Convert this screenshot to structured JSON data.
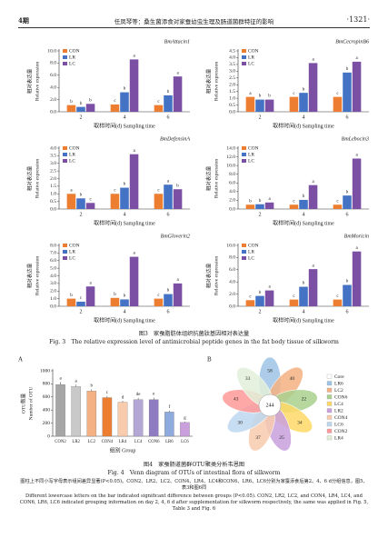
{
  "header": {
    "issue": "4期",
    "running_title": "任凤琴等：桑生菌添食对家蚕幼虫生理及肠道菌群特征的影响",
    "page": "·1321·"
  },
  "chart_data": [
    {
      "type": "bar",
      "title": "BmAttacin1",
      "ylabel_cn": "相对表达量",
      "ylabel": "Relative expression",
      "xlabel": "取样时间(d) Sampling time",
      "categories": [
        "2",
        "4",
        "6"
      ],
      "ylim": [
        0,
        10
      ],
      "yticks": [
        {
          "value": 0,
          "label": "0.0"
        },
        {
          "value": 2,
          "label": "2.0"
        },
        {
          "value": 4,
          "label": "4.0"
        },
        {
          "value": 6,
          "label": "6.0"
        },
        {
          "value": 8,
          "label": "8.0"
        },
        {
          "value": 10,
          "label": "10.0"
        }
      ],
      "series": [
        {
          "name": "CON",
          "color": "#ed7d31",
          "values": [
            1.1,
            1.2,
            1.1
          ],
          "letters": [
            "b",
            "c",
            "c"
          ]
        },
        {
          "name": "LR",
          "color": "#4472c4",
          "values": [
            0.8,
            3.2,
            2.7
          ],
          "letters": [
            "b",
            "b",
            "b"
          ]
        },
        {
          "name": "LC",
          "color": "#7b4fa3",
          "values": [
            1.3,
            8.6,
            5.8
          ],
          "letters": [
            "b",
            "a",
            "a"
          ]
        }
      ]
    },
    {
      "type": "bar",
      "title": "BmCecropinB6",
      "ylabel_cn": "相对表达量",
      "ylabel": "Relative expression",
      "xlabel": "取样时间(d) Sampling time",
      "categories": [
        "2",
        "4",
        "6"
      ],
      "ylim": [
        0,
        4.5
      ],
      "yticks": [
        {
          "value": 0,
          "label": "0.0"
        },
        {
          "value": 0.5,
          "label": "0.5"
        },
        {
          "value": 1,
          "label": "1.0"
        },
        {
          "value": 1.5,
          "label": "1.5"
        },
        {
          "value": 2,
          "label": "2.0"
        },
        {
          "value": 2.5,
          "label": "2.5"
        },
        {
          "value": 3,
          "label": "3.0"
        },
        {
          "value": 3.5,
          "label": "3.5"
        },
        {
          "value": 4,
          "label": "4.0"
        },
        {
          "value": 4.5,
          "label": "4.5"
        }
      ],
      "series": [
        {
          "name": "CON",
          "color": "#ed7d31",
          "values": [
            1.1,
            1.1,
            1.1
          ],
          "letters": [
            "a",
            "c",
            "c"
          ]
        },
        {
          "name": "LR",
          "color": "#4472c4",
          "values": [
            0.9,
            1.4,
            2.9
          ],
          "letters": [
            "b",
            "b",
            "b"
          ]
        },
        {
          "name": "LC",
          "color": "#7b4fa3",
          "values": [
            0.9,
            3.6,
            3.7
          ],
          "letters": [
            "b",
            "a",
            "a"
          ]
        }
      ]
    },
    {
      "type": "bar",
      "title": "BmDefensinA",
      "ylabel_cn": "相对表达量",
      "ylabel": "Relative expression",
      "xlabel": "取样时间(d) Sampling time",
      "categories": [
        "2",
        "4",
        "6"
      ],
      "ylim": [
        0,
        4
      ],
      "yticks": [
        {
          "value": 0,
          "label": "0.0"
        },
        {
          "value": 0.5,
          "label": "0.5"
        },
        {
          "value": 1,
          "label": "1.0"
        },
        {
          "value": 1.5,
          "label": "1.5"
        },
        {
          "value": 2,
          "label": "2.0"
        },
        {
          "value": 2.5,
          "label": "2.5"
        },
        {
          "value": 3,
          "label": "3.0"
        },
        {
          "value": 3.5,
          "label": "3.5"
        },
        {
          "value": 4,
          "label": "4.0"
        }
      ],
      "series": [
        {
          "name": "CON",
          "color": "#ed7d31",
          "values": [
            1.0,
            1.0,
            1.0
          ],
          "letters": [
            "a",
            "c",
            "c"
          ]
        },
        {
          "name": "LR",
          "color": "#4472c4",
          "values": [
            0.7,
            1.4,
            1.6
          ],
          "letters": [
            "b",
            "b",
            "a"
          ]
        },
        {
          "name": "LC",
          "color": "#7b4fa3",
          "values": [
            0.4,
            3.6,
            1.3
          ],
          "letters": [
            "c",
            "a",
            "b"
          ]
        }
      ]
    },
    {
      "type": "bar",
      "title": "BmLebocin3",
      "ylabel_cn": "相对表达量",
      "ylabel": "Relative expression",
      "xlabel": "取样时间(d) Sampling time",
      "categories": [
        "2",
        "4",
        "6"
      ],
      "ylim": [
        0,
        14
      ],
      "yticks": [
        {
          "value": 0,
          "label": "0.0"
        },
        {
          "value": 2,
          "label": "2.0"
        },
        {
          "value": 4,
          "label": "4.0"
        },
        {
          "value": 6,
          "label": "6.0"
        },
        {
          "value": 8,
          "label": "8.0"
        },
        {
          "value": 10,
          "label": "10.0"
        },
        {
          "value": 12,
          "label": "12.0"
        },
        {
          "value": 14,
          "label": "14.0"
        }
      ],
      "series": [
        {
          "name": "CON",
          "color": "#ed7d31",
          "values": [
            1.0,
            1.0,
            1.0
          ],
          "letters": [
            "b",
            "c",
            "c"
          ]
        },
        {
          "name": "LR",
          "color": "#4472c4",
          "values": [
            1.1,
            2.1,
            3.1
          ],
          "letters": [
            "b",
            "b",
            "b"
          ]
        },
        {
          "name": "LC",
          "color": "#7b4fa3",
          "values": [
            1.5,
            5.5,
            11.6
          ],
          "letters": [
            "a",
            "a",
            "a"
          ]
        }
      ]
    },
    {
      "type": "bar",
      "title": "BmGloverin2",
      "ylabel_cn": "相对表达量",
      "ylabel": "Relative expression",
      "xlabel": "取样时间(d) Sampling time",
      "categories": [
        "2",
        "4",
        "6"
      ],
      "ylim": [
        0,
        8
      ],
      "yticks": [
        {
          "value": 0,
          "label": "0.0"
        },
        {
          "value": 1,
          "label": "1.0"
        },
        {
          "value": 2,
          "label": "2.0"
        },
        {
          "value": 3,
          "label": "3.0"
        },
        {
          "value": 4,
          "label": "4.0"
        },
        {
          "value": 5,
          "label": "5.0"
        },
        {
          "value": 6,
          "label": "6.0"
        },
        {
          "value": 7,
          "label": "7.0"
        },
        {
          "value": 8,
          "label": "8.0"
        }
      ],
      "series": [
        {
          "name": "CON",
          "color": "#ed7d31",
          "values": [
            1.0,
            1.1,
            1.0
          ],
          "letters": [
            "b",
            "b",
            "c"
          ]
        },
        {
          "name": "LR",
          "color": "#4472c4",
          "values": [
            0.6,
            0.9,
            1.6
          ],
          "letters": [
            "c",
            "b",
            "b"
          ]
        },
        {
          "name": "LC",
          "color": "#7b4fa3",
          "values": [
            2.6,
            6.5,
            3.0
          ],
          "letters": [
            "a",
            "a",
            "a"
          ]
        }
      ]
    },
    {
      "type": "bar",
      "title": "BmMoricin",
      "ylabel_cn": "相对表达量",
      "ylabel": "Relative expression",
      "xlabel": "取样时间(d) Sampling time",
      "categories": [
        "2",
        "4",
        "6"
      ],
      "ylim": [
        0,
        10
      ],
      "yticks": [
        {
          "value": 0,
          "label": "0.0"
        },
        {
          "value": 2,
          "label": "2.0"
        },
        {
          "value": 4,
          "label": "4.0"
        },
        {
          "value": 6,
          "label": "6.0"
        },
        {
          "value": 8,
          "label": "8.0"
        },
        {
          "value": 10,
          "label": "10.0"
        }
      ],
      "series": [
        {
          "name": "CON",
          "color": "#ed7d31",
          "values": [
            1.0,
            1.1,
            1.1
          ],
          "letters": [
            "c",
            "c",
            "c"
          ]
        },
        {
          "name": "LR",
          "color": "#4472c4",
          "values": [
            1.7,
            3.2,
            3.5
          ],
          "letters": [
            "b",
            "b",
            "b"
          ]
        },
        {
          "name": "LC",
          "color": "#7b4fa3",
          "values": [
            2.6,
            6.1,
            9.0
          ],
          "letters": [
            "a",
            "a",
            "a"
          ]
        }
      ]
    },
    {
      "type": "bar",
      "panel": "A",
      "ylabel_cn": "OTU数量",
      "ylabel": "Number of OTU",
      "xlabel": "组别 Group",
      "categories": [
        "CON2",
        "LR2",
        "LC2",
        "CON4",
        "LR4",
        "LC4",
        "CON6",
        "LR6",
        "LC6"
      ],
      "values": [
        790,
        760,
        690,
        590,
        520,
        560,
        560,
        370,
        210
      ],
      "errors": [
        40,
        30,
        25,
        25,
        20,
        25,
        30,
        20,
        15
      ],
      "letters": [
        "a",
        "a",
        "b",
        "c",
        "d",
        "de",
        "e",
        "f",
        "g"
      ],
      "colors": [
        "#a6a6a6",
        "#c9c9c9",
        "#f4b183",
        "#ed7d31",
        "#f8cbad",
        "#b4a7d6",
        "#8e7cc3",
        "#8faadc",
        "#c9a0dc"
      ],
      "ylim": [
        0,
        1000
      ],
      "yticks": [
        0,
        200,
        400,
        600,
        800,
        1000
      ]
    }
  ],
  "figure3": {
    "caption_cn": "图3　家蚕脂肪体组织抗菌肽基因相对表达量",
    "caption_en": "Fig. 3　The relative expression level of antimicrobial peptide genes in the fat body tissue of silkworm"
  },
  "figure4": {
    "venn": {
      "panel": "B",
      "core": "244",
      "petals": [
        "58",
        "40",
        "22",
        "34",
        "25",
        "37",
        "30",
        "43",
        "33"
      ],
      "legend": [
        {
          "name": "Core",
          "color": "#ffffff"
        },
        {
          "name": "LR6",
          "color": "#9dc3e6"
        },
        {
          "name": "LC2",
          "color": "#f4b183"
        },
        {
          "name": "CON6",
          "color": "#a9d18e"
        },
        {
          "name": "LC4",
          "color": "#ffd966"
        },
        {
          "name": "LR2",
          "color": "#c9a0dc"
        },
        {
          "name": "CON4",
          "color": "#f8cbad"
        },
        {
          "name": "LC6",
          "color": "#bdd7ee"
        },
        {
          "name": "CON2",
          "color": "#ff9999"
        },
        {
          "name": "LR4",
          "color": "#e2f0d9"
        }
      ]
    },
    "caption_cn": "图4　家蚕肠道菌群OTU聚类分析韦恩图",
    "caption_en": "Fig. 4　Venn diagram of OTUs of intestinal flora of silkworm",
    "note_cn": "图柱上不同小写字母表示组间差异显著(P<0.05)。CON2、LR2、LC2、CON4、LR4、LC4和CON6、LR6、LC6分别为家蚕添食后第2、4、6 d分组信息，图5、表3和图6同",
    "note_en": "Different lowercase letters on the bar indicated significant difference between groups (P<0.05). CON2, LR2, LC2, and CON4, LR4, LC4, and CON6, LR6, LC6 indicated grouping information on day 2, 4, 6 d after supplementation for silkworm respectively, the same was applied in Fig. 5, Table 3 and Fig. 6"
  }
}
